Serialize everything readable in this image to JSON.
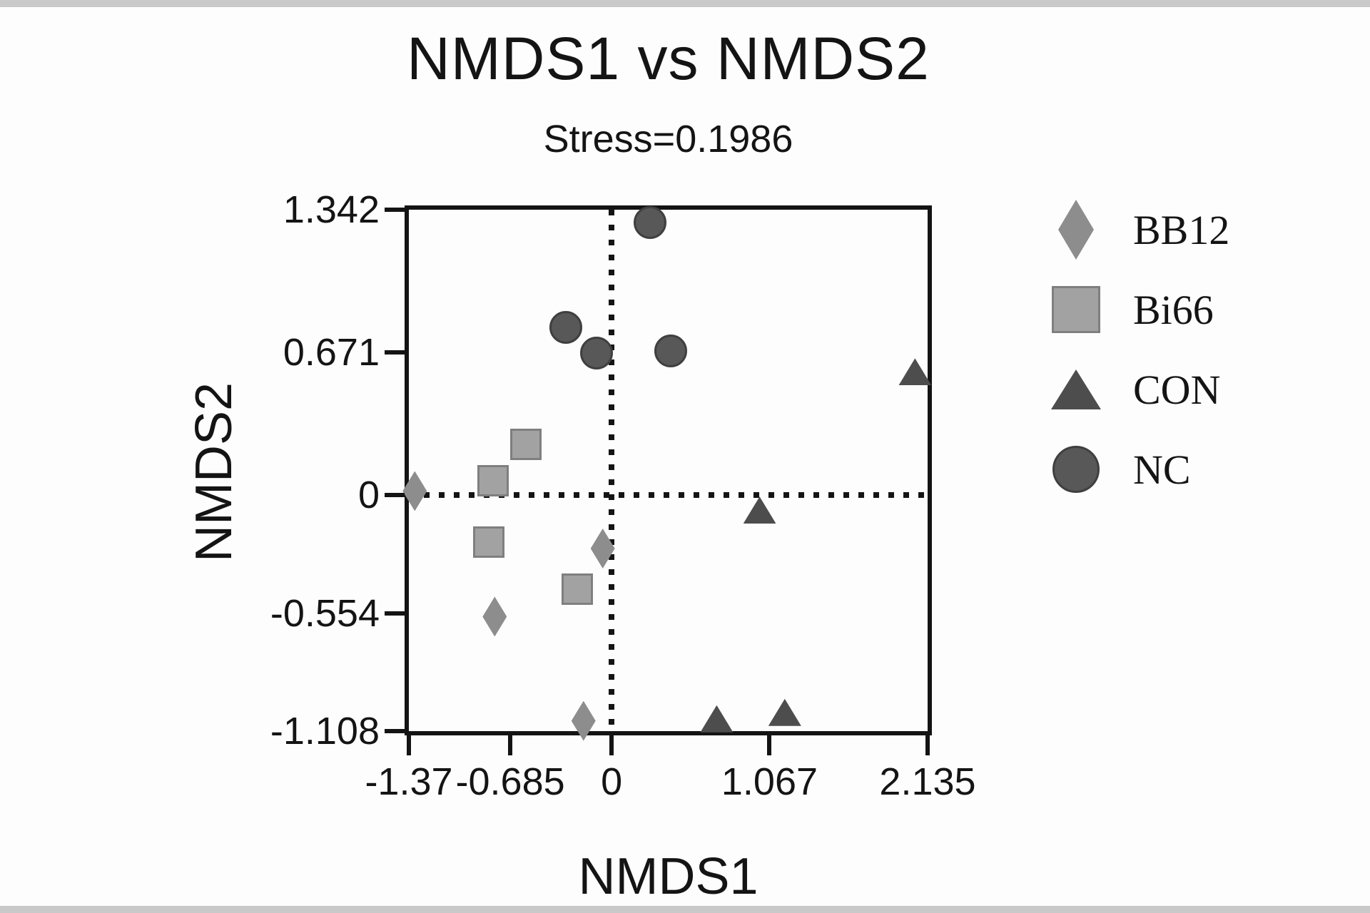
{
  "chart_data": {
    "type": "scatter",
    "title": "NMDS1 vs NMDS2",
    "subtitle": "Stress=0.1986",
    "xlabel": "NMDS1",
    "ylabel": "NMDS2",
    "xlim": [
      -1.37,
      2.135
    ],
    "ylim": [
      -1.108,
      1.342
    ],
    "xticks": [
      {
        "v": -1.37,
        "label": "-1.37"
      },
      {
        "v": -0.685,
        "label": "-0.685"
      },
      {
        "v": 0,
        "label": "0"
      },
      {
        "v": 1.067,
        "label": "1.067"
      },
      {
        "v": 2.135,
        "label": "2.135"
      }
    ],
    "yticks": [
      {
        "v": 1.342,
        "label": "1.342"
      },
      {
        "v": 0.671,
        "label": "0.671"
      },
      {
        "v": 0,
        "label": "0"
      },
      {
        "v": -0.554,
        "label": "-0.554"
      },
      {
        "v": -1.108,
        "label": "-1.108"
      }
    ],
    "reference_lines": {
      "x": 0,
      "y": 0,
      "style": "dotted",
      "color": "#141414"
    },
    "grid": false,
    "legend_position": "right",
    "series": [
      {
        "name": "BB12",
        "marker": "diamond",
        "color": "#8d8d8d",
        "points": [
          [
            -1.33,
            0.02
          ],
          [
            -0.06,
            -0.25
          ],
          [
            -0.79,
            -0.57
          ],
          [
            -0.19,
            -1.06
          ]
        ]
      },
      {
        "name": "Bi66",
        "marker": "square",
        "color": "#a2a2a2",
        "edge_color": "#7f7f7f",
        "points": [
          [
            -0.58,
            0.24
          ],
          [
            -0.8,
            0.07
          ],
          [
            -0.83,
            -0.22
          ],
          [
            -0.23,
            -0.44
          ]
        ]
      },
      {
        "name": "CON",
        "marker": "triangle",
        "color": "#4d4d4d",
        "points": [
          [
            1.0,
            -0.07
          ],
          [
            2.05,
            0.58
          ],
          [
            0.71,
            -1.05
          ],
          [
            1.17,
            -1.02
          ]
        ]
      },
      {
        "name": "NC",
        "marker": "circle",
        "color": "#585858",
        "edge_color": "#3f3f3f",
        "points": [
          [
            0.26,
            1.28
          ],
          [
            -0.31,
            0.79
          ],
          [
            -0.1,
            0.67
          ],
          [
            0.4,
            0.68
          ]
        ]
      }
    ]
  }
}
